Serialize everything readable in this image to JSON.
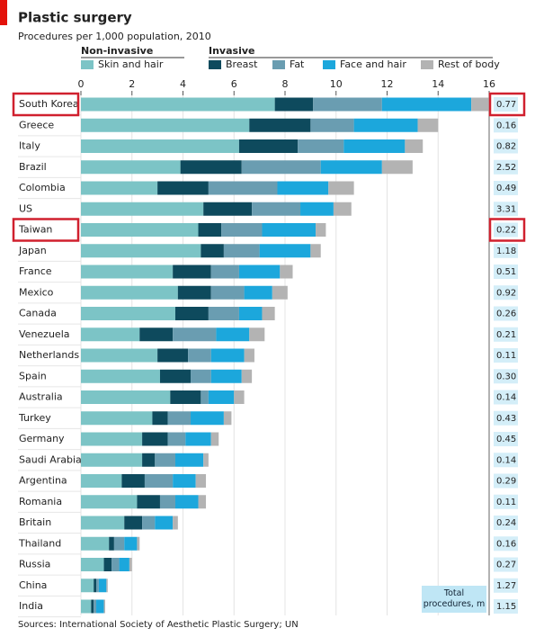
{
  "chart_data": {
    "type": "stacked-bar-horizontal",
    "title": "Plastic surgery",
    "subtitle": "Procedures per 1,000 population, 2010",
    "legend_groups": [
      {
        "name": "Non-invasive",
        "series": [
          0
        ]
      },
      {
        "name": "Invasive",
        "series": [
          1,
          2,
          3,
          4
        ]
      }
    ],
    "categories": [
      "South Korea",
      "Greece",
      "Italy",
      "Brazil",
      "Colombia",
      "US",
      "Taiwan",
      "Japan",
      "France",
      "Mexico",
      "Canada",
      "Venezuela",
      "Netherlands",
      "Spain",
      "Australia",
      "Turkey",
      "Germany",
      "Saudi Arabia",
      "Argentina",
      "Romania",
      "Britain",
      "Thailand",
      "Russia",
      "China",
      "India"
    ],
    "series": [
      {
        "name": "Skin and hair",
        "color": "#7cc4c6",
        "values": [
          7.6,
          6.6,
          6.2,
          3.9,
          3.0,
          4.8,
          4.6,
          4.7,
          3.6,
          3.8,
          3.7,
          2.3,
          3.0,
          3.1,
          3.5,
          2.8,
          2.4,
          2.4,
          1.6,
          2.2,
          1.7,
          1.1,
          0.9,
          0.5,
          0.4
        ]
      },
      {
        "name": "Breast",
        "color": "#0e4a5d",
        "values": [
          1.5,
          2.4,
          2.3,
          2.4,
          2.0,
          1.9,
          0.9,
          0.9,
          1.5,
          1.3,
          1.3,
          1.3,
          1.2,
          1.2,
          1.2,
          0.6,
          1.0,
          0.5,
          0.9,
          0.9,
          0.7,
          0.2,
          0.3,
          0.1,
          0.1
        ]
      },
      {
        "name": "Fat",
        "color": "#6a9db1",
        "values": [
          2.7,
          1.7,
          1.8,
          3.1,
          2.7,
          1.9,
          1.6,
          1.4,
          1.1,
          1.3,
          1.2,
          1.7,
          0.9,
          0.8,
          0.3,
          0.9,
          0.7,
          0.8,
          1.1,
          0.6,
          0.5,
          0.4,
          0.3,
          0.1,
          0.1
        ]
      },
      {
        "name": "Face and hair",
        "color": "#1ca7dc",
        "values": [
          3.5,
          2.5,
          2.4,
          2.4,
          2.0,
          1.3,
          2.1,
          2.0,
          1.6,
          1.1,
          0.9,
          1.3,
          1.3,
          1.2,
          1.0,
          1.3,
          1.0,
          1.1,
          0.9,
          0.9,
          0.7,
          0.5,
          0.4,
          0.3,
          0.3
        ]
      },
      {
        "name": "Rest of body",
        "color": "#b3b3b3",
        "values": [
          0.7,
          0.8,
          0.7,
          1.2,
          1.0,
          0.7,
          0.4,
          0.4,
          0.5,
          0.6,
          0.5,
          0.6,
          0.4,
          0.4,
          0.4,
          0.3,
          0.3,
          0.2,
          0.4,
          0.3,
          0.2,
          0.1,
          0.1,
          0.05,
          0.05
        ]
      }
    ],
    "xlim": [
      0,
      16
    ],
    "xticks": [
      0,
      2,
      4,
      6,
      8,
      10,
      12,
      14,
      16
    ],
    "grid": true,
    "highlight": [
      0,
      6
    ],
    "highlight_color": "#d0202e",
    "totals": {
      "name": "Total procedures, m",
      "values": [
        0.77,
        0.16,
        0.82,
        2.52,
        0.49,
        3.31,
        0.22,
        1.18,
        0.51,
        0.92,
        0.26,
        0.21,
        0.11,
        0.3,
        0.14,
        0.43,
        0.45,
        0.14,
        0.29,
        0.11,
        0.24,
        0.16,
        0.27,
        1.27,
        1.15
      ],
      "value_labels": [
        "0.77",
        "0.16",
        "0.82",
        "2.52",
        "0.49",
        "3.31",
        "0.22",
        "1.18",
        "0.51",
        "0.92",
        "0.26",
        "0.21",
        "0.11",
        "0.30",
        "0.14",
        "0.43",
        "0.45",
        "0.14",
        "0.29",
        "0.11",
        "0.24",
        "0.16",
        "0.27",
        "1.27",
        "1.15"
      ]
    },
    "source": "Sources: International Society of Aesthetic Plastic Surgery; UN"
  }
}
